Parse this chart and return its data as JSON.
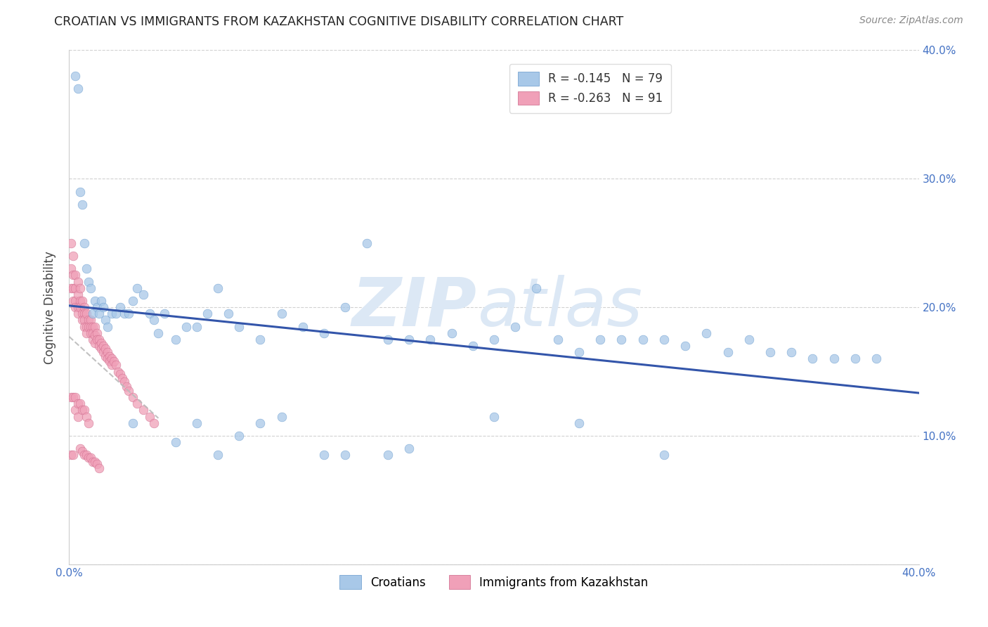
{
  "title": "CROATIAN VS IMMIGRANTS FROM KAZAKHSTAN COGNITIVE DISABILITY CORRELATION CHART",
  "source": "Source: ZipAtlas.com",
  "ylabel": "Cognitive Disability",
  "xlabel_croatians": "Croatians",
  "xlabel_immigrants": "Immigrants from Kazakhstan",
  "xlim": [
    0.0,
    0.4
  ],
  "ylim": [
    0.0,
    0.4
  ],
  "R_croatians": -0.145,
  "N_croatians": 79,
  "R_immigrants": -0.263,
  "N_immigrants": 91,
  "blue_color": "#a8c8e8",
  "blue_edge": "#6699cc",
  "pink_color": "#f0a0b8",
  "pink_edge": "#cc6688",
  "line_blue": "#3355aa",
  "line_pink": "#bbbbbb",
  "grid_color": "#cccccc",
  "watermark_color": "#dce8f5",
  "croatians_x": [
    0.003,
    0.004,
    0.005,
    0.006,
    0.007,
    0.008,
    0.009,
    0.01,
    0.011,
    0.012,
    0.013,
    0.014,
    0.015,
    0.016,
    0.017,
    0.018,
    0.02,
    0.022,
    0.024,
    0.026,
    0.028,
    0.03,
    0.032,
    0.035,
    0.038,
    0.04,
    0.042,
    0.045,
    0.05,
    0.055,
    0.06,
    0.065,
    0.07,
    0.075,
    0.08,
    0.09,
    0.1,
    0.11,
    0.12,
    0.13,
    0.14,
    0.15,
    0.16,
    0.17,
    0.18,
    0.19,
    0.2,
    0.21,
    0.22,
    0.23,
    0.24,
    0.25,
    0.26,
    0.27,
    0.28,
    0.29,
    0.3,
    0.31,
    0.32,
    0.33,
    0.34,
    0.35,
    0.36,
    0.37,
    0.38,
    0.06,
    0.08,
    0.1,
    0.13,
    0.16,
    0.2,
    0.24,
    0.28,
    0.05,
    0.09,
    0.12,
    0.15,
    0.03,
    0.07
  ],
  "croatians_y": [
    0.38,
    0.37,
    0.29,
    0.28,
    0.25,
    0.23,
    0.22,
    0.215,
    0.195,
    0.205,
    0.2,
    0.195,
    0.205,
    0.2,
    0.19,
    0.185,
    0.195,
    0.195,
    0.2,
    0.195,
    0.195,
    0.205,
    0.215,
    0.21,
    0.195,
    0.19,
    0.18,
    0.195,
    0.175,
    0.185,
    0.185,
    0.195,
    0.215,
    0.195,
    0.185,
    0.175,
    0.195,
    0.185,
    0.18,
    0.2,
    0.25,
    0.175,
    0.175,
    0.175,
    0.18,
    0.17,
    0.175,
    0.185,
    0.215,
    0.175,
    0.165,
    0.175,
    0.175,
    0.175,
    0.175,
    0.17,
    0.18,
    0.165,
    0.175,
    0.165,
    0.165,
    0.16,
    0.16,
    0.16,
    0.16,
    0.11,
    0.1,
    0.115,
    0.085,
    0.09,
    0.115,
    0.11,
    0.085,
    0.095,
    0.11,
    0.085,
    0.085,
    0.11,
    0.085
  ],
  "immigrants_x": [
    0.001,
    0.001,
    0.001,
    0.002,
    0.002,
    0.002,
    0.002,
    0.003,
    0.003,
    0.003,
    0.003,
    0.004,
    0.004,
    0.004,
    0.004,
    0.005,
    0.005,
    0.005,
    0.006,
    0.006,
    0.006,
    0.007,
    0.007,
    0.007,
    0.007,
    0.008,
    0.008,
    0.008,
    0.009,
    0.009,
    0.01,
    0.01,
    0.01,
    0.011,
    0.011,
    0.011,
    0.012,
    0.012,
    0.012,
    0.013,
    0.013,
    0.014,
    0.014,
    0.015,
    0.015,
    0.016,
    0.016,
    0.017,
    0.017,
    0.018,
    0.018,
    0.019,
    0.019,
    0.02,
    0.02,
    0.021,
    0.022,
    0.023,
    0.024,
    0.025,
    0.026,
    0.027,
    0.028,
    0.03,
    0.032,
    0.035,
    0.038,
    0.04,
    0.001,
    0.002,
    0.003,
    0.004,
    0.005,
    0.006,
    0.007,
    0.008,
    0.009,
    0.01,
    0.011,
    0.012,
    0.013,
    0.014,
    0.001,
    0.002,
    0.003,
    0.004,
    0.005,
    0.006,
    0.007,
    0.008,
    0.009
  ],
  "immigrants_y": [
    0.25,
    0.23,
    0.215,
    0.24,
    0.225,
    0.215,
    0.205,
    0.225,
    0.215,
    0.205,
    0.2,
    0.22,
    0.21,
    0.2,
    0.195,
    0.215,
    0.205,
    0.2,
    0.205,
    0.195,
    0.19,
    0.2,
    0.195,
    0.19,
    0.185,
    0.195,
    0.185,
    0.18,
    0.19,
    0.185,
    0.19,
    0.185,
    0.18,
    0.185,
    0.18,
    0.175,
    0.185,
    0.178,
    0.172,
    0.18,
    0.175,
    0.175,
    0.17,
    0.172,
    0.168,
    0.17,
    0.165,
    0.168,
    0.162,
    0.165,
    0.16,
    0.162,
    0.158,
    0.16,
    0.155,
    0.158,
    0.155,
    0.15,
    0.148,
    0.145,
    0.142,
    0.138,
    0.135,
    0.13,
    0.125,
    0.12,
    0.115,
    0.11,
    0.085,
    0.085,
    0.12,
    0.115,
    0.09,
    0.088,
    0.085,
    0.085,
    0.083,
    0.083,
    0.08,
    0.08,
    0.078,
    0.075,
    0.13,
    0.13,
    0.13,
    0.125,
    0.125,
    0.12,
    0.12,
    0.115,
    0.11
  ]
}
